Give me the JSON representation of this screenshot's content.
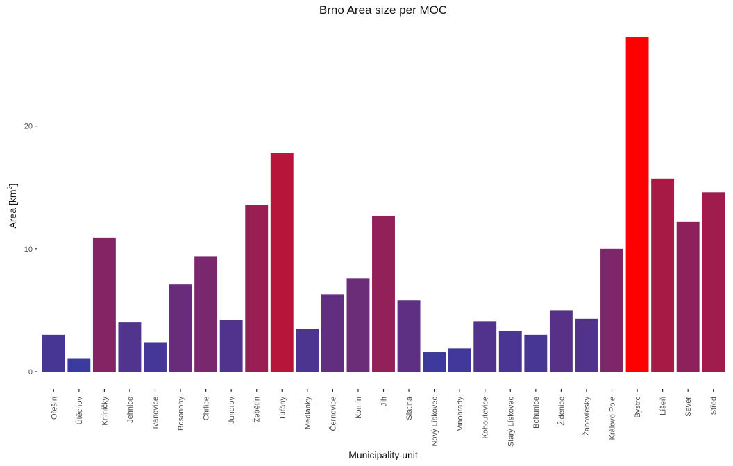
{
  "chart_data": {
    "type": "bar",
    "title": "Brno Area size per MOC",
    "xlabel": "Municipality unit",
    "ylabel": "Area [km",
    "ylabel_superscript": "2",
    "ylabel_suffix": "]",
    "ylim": [
      0,
      28.5
    ],
    "yticks": [
      0,
      10,
      20
    ],
    "grid": false,
    "legend": "none",
    "categories": [
      "Ořešín",
      "Útěchov",
      "Kníničky",
      "Jehnice",
      "Ivanovice",
      "Bosonohy",
      "Chrlice",
      "Jundrov",
      "Žebětín",
      "Tuřany",
      "Medlánky",
      "Černovice",
      "Komín",
      "Jih",
      "Slatina",
      "Nový Lískovec",
      "Vinohrady",
      "Kohoutovice",
      "Starý Lískovec",
      "Bohunice",
      "Židenice",
      "Žabovřesky",
      "Královo Pole",
      "Bystrc",
      "Líšeň",
      "Sever",
      "Střed"
    ],
    "values": [
      3.0,
      1.1,
      10.9,
      4.0,
      2.4,
      7.1,
      9.4,
      4.2,
      13.6,
      17.8,
      3.5,
      6.3,
      7.6,
      12.7,
      5.8,
      1.6,
      1.9,
      4.1,
      3.3,
      3.0,
      5.0,
      4.3,
      10.0,
      27.2,
      15.7,
      12.2,
      14.6
    ],
    "colors": {
      "low": "#3a3aa0",
      "high": "#ff0000"
    }
  }
}
